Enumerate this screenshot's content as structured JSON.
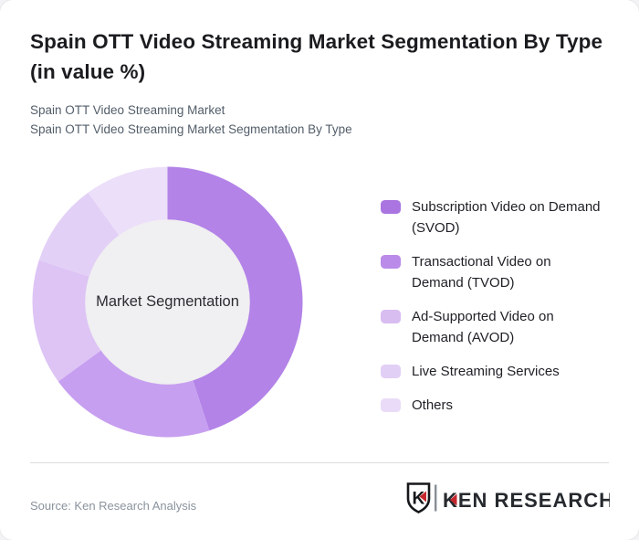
{
  "page": {
    "background": "#f3f3f5",
    "card_background": "#ffffff"
  },
  "header": {
    "title": "Spain OTT Video Streaming Market Segmentation By Type (in value %)",
    "subtitle_line1": "Spain OTT Video Streaming Market",
    "subtitle_line2": "Spain OTT Video Streaming Market Segmentation By Type"
  },
  "chart_data": {
    "type": "pie",
    "variant": "donut",
    "title": "Spain OTT Video Streaming Market Segmentation By Type (in value %)",
    "center_label": "Market Segmentation",
    "center_fill": "#f0eff1",
    "start_angle_deg": 0,
    "direction": "clockwise",
    "inner_radius_ratio": 0.61,
    "values_unit": "%",
    "legend_position": "right",
    "segments": [
      {
        "label": "Subscription Video on Demand (SVOD)",
        "value": 45,
        "color": "#b383e8",
        "swatch_color": "#aa75e1"
      },
      {
        "label": "Transactional Video on Demand (TVOD)",
        "value": 20,
        "color": "#c79ff0",
        "swatch_color": "#ba8be8"
      },
      {
        "label": "Ad-Supported Video on Demand (AVOD)",
        "value": 15,
        "color": "#ddc4f5",
        "swatch_color": "#d8bdf1"
      },
      {
        "label": "Live Streaming Services",
        "value": 10,
        "color": "#e3d0f6",
        "swatch_color": "#e2cff5"
      },
      {
        "label": "Others",
        "value": 10,
        "color": "#ecdff9",
        "swatch_color": "#eadcf8"
      }
    ]
  },
  "legend": {
    "items": [
      {
        "text": "Subscription Video on Demand\n(SVOD)"
      },
      {
        "text": "Transactional Video on\nDemand (TVOD)"
      },
      {
        "text": "Ad-Supported Video on\nDemand (AVOD)"
      },
      {
        "text": "Live Streaming Services"
      },
      {
        "text": "Others"
      }
    ]
  },
  "footer": {
    "source": "Source: Ken Research Analysis",
    "logo": {
      "brand": "KEN RESEARCH",
      "monogram": "K"
    },
    "logo_red": "#c5272d",
    "logo_dark": "#26292e"
  }
}
